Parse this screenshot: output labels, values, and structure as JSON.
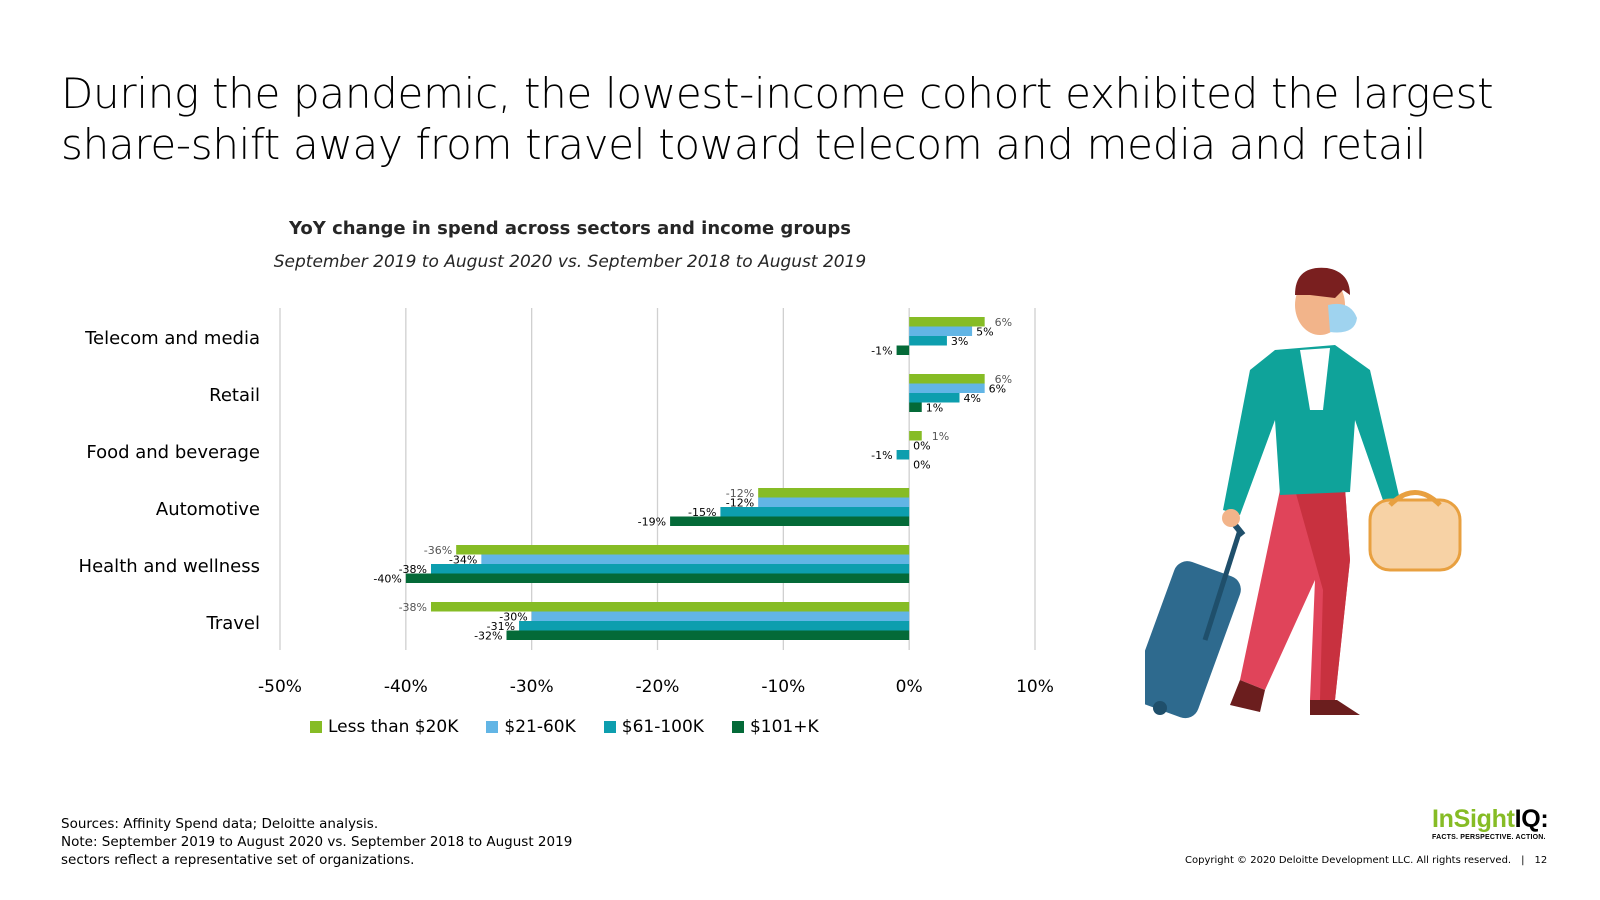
{
  "headline": {
    "line1": "During the pandemic, the lowest-income cohort exhibited the largest",
    "line2": "share-shift away from travel toward telecom and media and retail"
  },
  "colors": {
    "less_than_20k": "#86bc25",
    "k21_60": "#62b5e5",
    "k61_100": "#0d9eae",
    "k101_plus": "#046a38",
    "grid": "#d0d0d0"
  },
  "chart_data": {
    "type": "bar",
    "orientation": "horizontal",
    "title": "YoY change in spend across sectors and income groups",
    "subtitle": "September 2019 to August 2020 vs. September 2018 to August 2019",
    "categories": [
      "Telecom and media",
      "Retail",
      "Food and beverage",
      "Automotive",
      "Health and wellness",
      "Travel"
    ],
    "series": [
      {
        "name": "Less than $20K",
        "values": [
          6,
          6,
          1,
          -12,
          -36,
          -38
        ]
      },
      {
        "name": "$21-60K",
        "values": [
          5,
          6,
          0,
          -12,
          -34,
          -30
        ]
      },
      {
        "name": "$61-100K",
        "values": [
          3,
          4,
          -1,
          -15,
          -38,
          -31
        ]
      },
      {
        "name": "$101+K",
        "values": [
          -1,
          1,
          0,
          -19,
          -40,
          -32
        ]
      }
    ],
    "xlim": [
      -50,
      10
    ],
    "xticks": [
      "-50%",
      "-40%",
      "-30%",
      "-20%",
      "-10%",
      "0%",
      "10%"
    ],
    "grid": true,
    "legend_position": "bottom"
  },
  "sources": {
    "line1": "Sources: Affinity Spend data; Deloitte analysis.",
    "line2": "Note: September 2019 to August 2020 vs. September 2018 to August 2019",
    "line3": "sectors reflect a representative set of organizations."
  },
  "logo": {
    "green_part": "InSight",
    "dark_part": "IQ:",
    "tagline": "FACTS. PERSPECTIVE. ACTION."
  },
  "footer": {
    "copyright": "Copyright © 2020 Deloitte Development LLC. All rights reserved.",
    "page_number": "12"
  },
  "illustration": {
    "icon": "traveler-with-luggage-icon"
  }
}
